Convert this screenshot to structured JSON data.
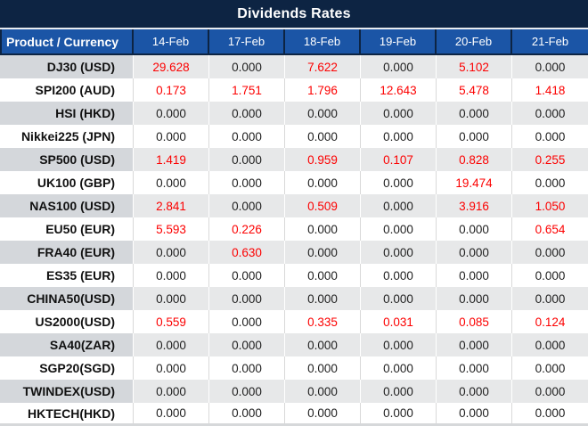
{
  "title": "Dividends Rates",
  "colors": {
    "title_bg": "#0d2443",
    "header_bg": "#1b55a6",
    "header_text": "#ffffff",
    "stripe_label_bg": "#d4d7db",
    "stripe_value_bg": "#e7e8e9",
    "value_zero": "#1f1f1f",
    "value_nonzero": "#fc0000"
  },
  "table": {
    "product_header": "Product / Currency",
    "date_headers": [
      "14-Feb",
      "17-Feb",
      "18-Feb",
      "19-Feb",
      "20-Feb",
      "21-Feb"
    ],
    "rows": [
      {
        "product": "DJ30 (USD)",
        "values": [
          "29.628",
          "0.000",
          "7.622",
          "0.000",
          "5.102",
          "0.000"
        ]
      },
      {
        "product": "SPI200 (AUD)",
        "values": [
          "0.173",
          "1.751",
          "1.796",
          "12.643",
          "5.478",
          "1.418"
        ]
      },
      {
        "product": "HSI (HKD)",
        "values": [
          "0.000",
          "0.000",
          "0.000",
          "0.000",
          "0.000",
          "0.000"
        ]
      },
      {
        "product": "Nikkei225 (JPN)",
        "values": [
          "0.000",
          "0.000",
          "0.000",
          "0.000",
          "0.000",
          "0.000"
        ]
      },
      {
        "product": "SP500 (USD)",
        "values": [
          "1.419",
          "0.000",
          "0.959",
          "0.107",
          "0.828",
          "0.255"
        ]
      },
      {
        "product": "UK100 (GBP)",
        "values": [
          "0.000",
          "0.000",
          "0.000",
          "0.000",
          "19.474",
          "0.000"
        ]
      },
      {
        "product": "NAS100 (USD)",
        "values": [
          "2.841",
          "0.000",
          "0.509",
          "0.000",
          "3.916",
          "1.050"
        ]
      },
      {
        "product": "EU50 (EUR)",
        "values": [
          "5.593",
          "0.226",
          "0.000",
          "0.000",
          "0.000",
          "0.654"
        ]
      },
      {
        "product": "FRA40 (EUR)",
        "values": [
          "0.000",
          "0.630",
          "0.000",
          "0.000",
          "0.000",
          "0.000"
        ]
      },
      {
        "product": "ES35 (EUR)",
        "values": [
          "0.000",
          "0.000",
          "0.000",
          "0.000",
          "0.000",
          "0.000"
        ]
      },
      {
        "product": "CHINA50(USD)",
        "values": [
          "0.000",
          "0.000",
          "0.000",
          "0.000",
          "0.000",
          "0.000"
        ]
      },
      {
        "product": "US2000(USD)",
        "values": [
          "0.559",
          "0.000",
          "0.335",
          "0.031",
          "0.085",
          "0.124"
        ]
      },
      {
        "product": "SA40(ZAR)",
        "values": [
          "0.000",
          "0.000",
          "0.000",
          "0.000",
          "0.000",
          "0.000"
        ]
      },
      {
        "product": "SGP20(SGD)",
        "values": [
          "0.000",
          "0.000",
          "0.000",
          "0.000",
          "0.000",
          "0.000"
        ]
      },
      {
        "product": "TWINDEX(USD)",
        "values": [
          "0.000",
          "0.000",
          "0.000",
          "0.000",
          "0.000",
          "0.000"
        ]
      },
      {
        "product": "HKTECH(HKD)",
        "values": [
          "0.000",
          "0.000",
          "0.000",
          "0.000",
          "0.000",
          "0.000"
        ]
      }
    ]
  }
}
